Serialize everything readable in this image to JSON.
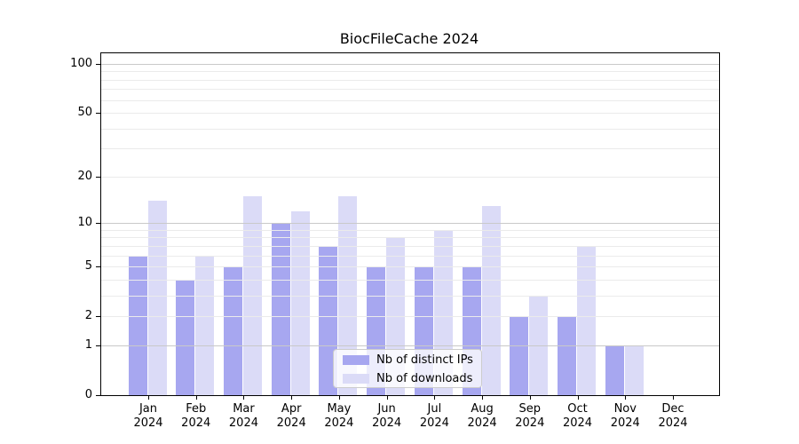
{
  "title": "BiocFileCache 2024",
  "chart_data": {
    "type": "bar",
    "title": "BiocFileCache 2024",
    "categories": [
      "Jan 2024",
      "Feb 2024",
      "Mar 2024",
      "Apr 2024",
      "May 2024",
      "Jun 2024",
      "Jul 2024",
      "Aug 2024",
      "Sep 2024",
      "Oct 2024",
      "Nov 2024",
      "Dec 2024"
    ],
    "series": [
      {
        "name": "Nb of distinct IPs",
        "color": "#a7a7f0",
        "values": [
          6,
          4,
          5,
          10,
          7,
          5,
          5,
          5,
          2,
          2,
          1,
          0
        ]
      },
      {
        "name": "Nb of downloads",
        "color": "#dbdbf7",
        "values": [
          14,
          6,
          15,
          12,
          15,
          8,
          9,
          13,
          3,
          7,
          1,
          0
        ]
      }
    ],
    "xlabel": "",
    "ylabel": "",
    "yscale": "log1p",
    "yticks": [
      0,
      1,
      2,
      5,
      10,
      20,
      50,
      100
    ],
    "ylim": [
      0,
      116
    ],
    "grid": {
      "major": [
        1,
        10,
        100
      ],
      "minor": [
        2,
        3,
        4,
        5,
        6,
        7,
        8,
        9,
        20,
        30,
        40,
        50,
        60,
        70,
        80,
        90
      ],
      "major_color": "#c9c9c9",
      "minor_color": "#ebebeb",
      "drawn_over_bars": true
    },
    "legend_position": "lower center"
  },
  "legend": {
    "items": [
      {
        "swatch": "ips-swatch",
        "label": "Nb of distinct IPs"
      },
      {
        "swatch": "downloads-swatch",
        "label": "Nb of downloads"
      }
    ]
  },
  "colors": {
    "background": "#ffffff",
    "spine": "#000000",
    "ips_bar": "#a7a7f0",
    "downloads_bar": "#dbdbf7"
  }
}
